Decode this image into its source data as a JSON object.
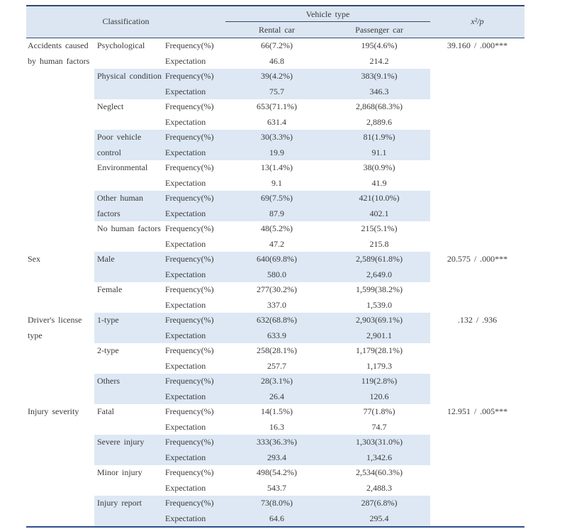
{
  "colors": {
    "header_bg": "#dbe6f2",
    "stripe_bg": "#dde8f4",
    "rule": "#35486b",
    "bottom_rule": "#2d4f8e",
    "text": "#3a3a3a"
  },
  "table": {
    "header": {
      "classification": "Classification",
      "vehicle_type": "Vehicle type",
      "rental": "Rental car",
      "passenger": "Passenger car",
      "chi": "x²/p"
    },
    "measure_labels": {
      "frequency": "Frequency(%)",
      "expectation": "Expectation"
    },
    "groups": [
      {
        "label": "Accidents caused by human factors",
        "chi_p": "39.160 / .000***",
        "subs": [
          {
            "label": "Psychological",
            "freq_rental": "66(7.2%)",
            "freq_passenger": "195(4.6%)",
            "exp_rental": "46.8",
            "exp_passenger": "214.2"
          },
          {
            "label": "Physical condition",
            "freq_rental": "39(4.2%)",
            "freq_passenger": "383(9.1%)",
            "exp_rental": "75.7",
            "exp_passenger": "346.3"
          },
          {
            "label": "Neglect",
            "freq_rental": "653(71.1%)",
            "freq_passenger": "2,868(68.3%)",
            "exp_rental": "631.4",
            "exp_passenger": "2,889.6"
          },
          {
            "label": "Poor vehicle control",
            "freq_rental": "30(3.3%)",
            "freq_passenger": "81(1.9%)",
            "exp_rental": "19.9",
            "exp_passenger": "91.1"
          },
          {
            "label": "Environmental",
            "freq_rental": "13(1.4%)",
            "freq_passenger": "38(0.9%)",
            "exp_rental": "9.1",
            "exp_passenger": "41.9"
          },
          {
            "label": "Other human factors",
            "freq_rental": "69(7.5%)",
            "freq_passenger": "421(10.0%)",
            "exp_rental": "87.9",
            "exp_passenger": "402.1"
          },
          {
            "label": "No human factors",
            "freq_rental": "48(5.2%)",
            "freq_passenger": "215(5.1%)",
            "exp_rental": "47.2",
            "exp_passenger": "215.8"
          }
        ]
      },
      {
        "label": "Sex",
        "chi_p": "20.575 / .000***",
        "subs": [
          {
            "label": "Male",
            "freq_rental": "640(69.8%)",
            "freq_passenger": "2,589(61.8%)",
            "exp_rental": "580.0",
            "exp_passenger": "2,649.0"
          },
          {
            "label": "Female",
            "freq_rental": "277(30.2%)",
            "freq_passenger": "1,599(38.2%)",
            "exp_rental": "337.0",
            "exp_passenger": "1,539.0"
          }
        ]
      },
      {
        "label": "Driver's license type",
        "chi_p": ".132 / .936",
        "subs": [
          {
            "label": "1-type",
            "freq_rental": "632(68.8%)",
            "freq_passenger": "2,903(69.1%)",
            "exp_rental": "633.9",
            "exp_passenger": "2,901.1"
          },
          {
            "label": "2-type",
            "freq_rental": "258(28.1%)",
            "freq_passenger": "1,179(28.1%)",
            "exp_rental": "257.7",
            "exp_passenger": "1,179.3"
          },
          {
            "label": "Others",
            "freq_rental": "28(3.1%)",
            "freq_passenger": "119(2.8%)",
            "exp_rental": "26.4",
            "exp_passenger": "120.6"
          }
        ]
      },
      {
        "label": "Injury severity",
        "chi_p": "12.951 / .005***",
        "subs": [
          {
            "label": "Fatal",
            "freq_rental": "14(1.5%)",
            "freq_passenger": "77(1.8%)",
            "exp_rental": "16.3",
            "exp_passenger": "74.7"
          },
          {
            "label": "Severe injury",
            "freq_rental": "333(36.3%)",
            "freq_passenger": "1,303(31.0%)",
            "exp_rental": "293.4",
            "exp_passenger": "1,342.6"
          },
          {
            "label": "Minor injury",
            "freq_rental": "498(54.2%)",
            "freq_passenger": "2,534(60.3%)",
            "exp_rental": "543.7",
            "exp_passenger": "2,488.3"
          },
          {
            "label": "Injury report",
            "freq_rental": "73(8.0%)",
            "freq_passenger": "287(6.8%)",
            "exp_rental": "64.6",
            "exp_passenger": "295.4"
          }
        ]
      }
    ]
  }
}
